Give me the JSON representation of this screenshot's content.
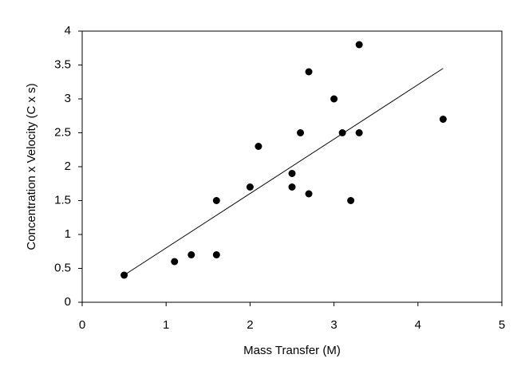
{
  "chart_data": {
    "type": "scatter",
    "x_label": "Mass Transfer (M)",
    "y_label": "Concentration x Velocity (C x s)",
    "x": [
      0.5,
      1.1,
      1.3,
      1.6,
      1.6,
      2.0,
      2.1,
      2.5,
      2.5,
      2.6,
      2.7,
      2.7,
      3.0,
      3.1,
      3.2,
      3.3,
      3.3,
      4.3
    ],
    "values": [
      0.4,
      0.6,
      0.7,
      0.7,
      1.5,
      1.7,
      2.3,
      1.9,
      1.7,
      2.5,
      3.4,
      1.6,
      3.0,
      2.5,
      1.5,
      3.8,
      2.5,
      2.7
    ],
    "color": "#000000",
    "trendline": {
      "x": [
        0.5,
        4.3
      ],
      "y": [
        0.4,
        3.45
      ]
    },
    "xlim": [
      0,
      5
    ],
    "xticks": [
      0,
      1,
      2,
      3,
      4,
      5
    ],
    "ylim": [
      0,
      4
    ],
    "yticks": [
      0,
      0.5,
      1,
      1.5,
      2,
      2.5,
      3,
      3.5,
      4
    ],
    "grid": false
  }
}
